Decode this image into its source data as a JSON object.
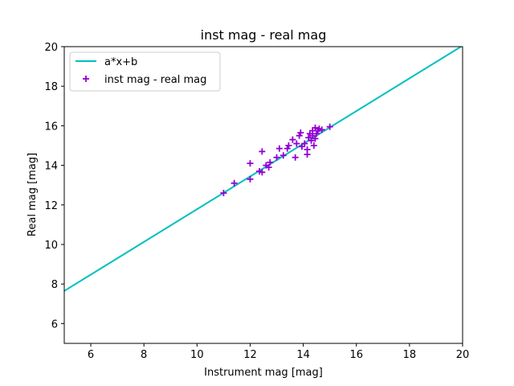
{
  "chart_data": {
    "type": "scatter",
    "title": "inst mag - real mag",
    "xlabel": "Instrument mag [mag]",
    "ylabel": "Real mag [mag]",
    "xlim": [
      5,
      20
    ],
    "ylim": [
      5,
      20
    ],
    "xticks": [
      6,
      8,
      10,
      12,
      14,
      16,
      18,
      20
    ],
    "yticks": [
      6,
      8,
      10,
      12,
      14,
      16,
      18,
      20
    ],
    "grid": false,
    "legend_position": "top-left",
    "line": {
      "name": "a*x+b",
      "color": "#00bfbf",
      "points": [
        [
          5,
          7.65
        ],
        [
          20,
          20.05
        ]
      ]
    },
    "scatter": {
      "name": "inst mag - real mag",
      "color": "#9400d3",
      "marker": "plus",
      "points": [
        [
          11.0,
          12.6
        ],
        [
          11.4,
          13.1
        ],
        [
          12.0,
          13.3
        ],
        [
          12.0,
          14.1
        ],
        [
          12.35,
          13.7
        ],
        [
          12.45,
          13.65
        ],
        [
          12.45,
          14.7
        ],
        [
          12.6,
          14.0
        ],
        [
          12.7,
          13.9
        ],
        [
          12.75,
          14.15
        ],
        [
          13.0,
          14.4
        ],
        [
          13.1,
          14.85
        ],
        [
          13.25,
          14.5
        ],
        [
          13.4,
          14.85
        ],
        [
          13.45,
          15.0
        ],
        [
          13.6,
          15.3
        ],
        [
          13.7,
          14.4
        ],
        [
          13.75,
          15.1
        ],
        [
          13.85,
          15.5
        ],
        [
          13.9,
          15.65
        ],
        [
          13.95,
          14.95
        ],
        [
          14.05,
          15.1
        ],
        [
          14.15,
          14.55
        ],
        [
          14.15,
          14.8
        ],
        [
          14.2,
          15.4
        ],
        [
          14.25,
          15.6
        ],
        [
          14.3,
          15.25
        ],
        [
          14.35,
          15.5
        ],
        [
          14.35,
          15.75
        ],
        [
          14.4,
          15.0
        ],
        [
          14.45,
          15.9
        ],
        [
          14.45,
          15.35
        ],
        [
          14.5,
          15.6
        ],
        [
          14.55,
          15.75
        ],
        [
          14.6,
          15.85
        ],
        [
          14.7,
          15.8
        ],
        [
          15.0,
          15.95
        ]
      ]
    }
  }
}
